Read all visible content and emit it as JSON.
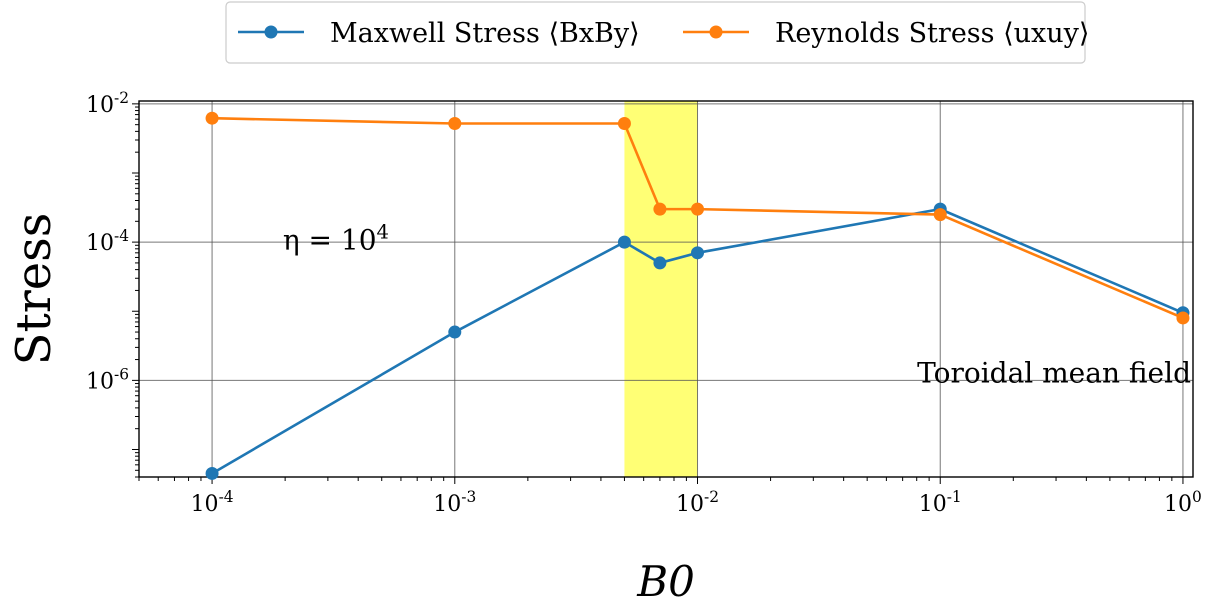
{
  "chart_data": {
    "type": "line",
    "xlabel": "B0",
    "ylabel": "Stress",
    "x_scale": "log",
    "y_scale": "log",
    "xlim": [
      5e-05,
      1.1
    ],
    "ylim": [
      4e-08,
      0.011
    ],
    "grid": true,
    "legend": {
      "placement": "top-center",
      "columns": 2
    },
    "x_ticks": [
      {
        "value": 0.0001,
        "label": "10^-4"
      },
      {
        "value": 0.001,
        "label": "10^-3"
      },
      {
        "value": 0.01,
        "label": "10^-2"
      },
      {
        "value": 0.1,
        "label": "10^-1"
      },
      {
        "value": 1,
        "label": "10^0"
      }
    ],
    "y_ticks": [
      {
        "value": 1e-06,
        "label": "10^-6"
      },
      {
        "value": 0.0001,
        "label": "10^-4"
      },
      {
        "value": 0.01,
        "label": "10^-2"
      }
    ],
    "highlight_band": {
      "x_from": 0.005,
      "x_to": 0.01,
      "color": "#ffff66"
    },
    "annotations": [
      {
        "text": "η = 10^4",
        "x": 0.0003,
        "y": 0.00011
      },
      {
        "text": "Toroidal mean field",
        "x": 0.3,
        "y": 1.3e-06
      }
    ],
    "series": [
      {
        "name": "Maxwell Stress ⟨BxBy⟩",
        "color": "#1f77b4",
        "x": [
          0.0001,
          0.001,
          0.005,
          0.007,
          0.01,
          0.1,
          1
        ],
        "y": [
          4.5e-08,
          5e-06,
          0.0001,
          5e-05,
          7e-05,
          0.0003,
          9.5e-06
        ]
      },
      {
        "name": "Reynolds Stress ⟨uxuy⟩",
        "color": "#ff7f0e",
        "x": [
          0.0001,
          0.001,
          0.005,
          0.007,
          0.01,
          0.1,
          1
        ],
        "y": [
          0.0062,
          0.0052,
          0.0052,
          0.0003,
          0.0003,
          0.00025,
          8e-06
        ]
      }
    ]
  }
}
